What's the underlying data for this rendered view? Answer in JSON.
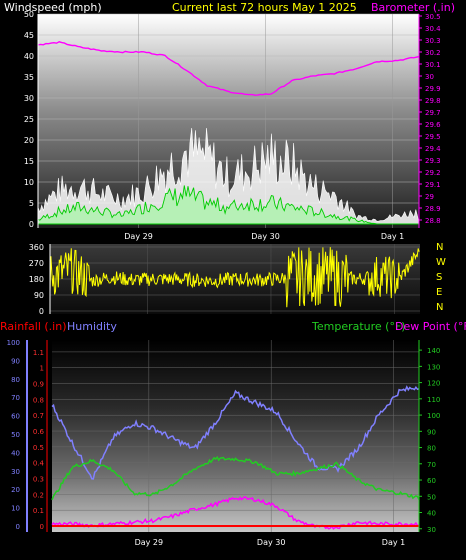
{
  "header": {
    "left": "Windspeed (mph)",
    "center": "Current last 72 hours May 1 2025",
    "right": "Barometer (.in)"
  },
  "colors": {
    "title": "#ffff00",
    "windspeed_title": "#ffffff",
    "barometer": "#ff00ff",
    "wind_avg": "#00cc00",
    "wind_gust": "#ffffff",
    "wind_dir": "#ffff00",
    "humidity": "#8080ff",
    "temperature": "#22cc22",
    "dew_point": "#ff00ff",
    "rainfall": "#ff0000"
  },
  "x_labels": [
    "Day 29",
    "Day 30",
    "Day 1"
  ],
  "chart_data": [
    {
      "type": "area",
      "title": "",
      "ylabel_left": "Windspeed (mph)",
      "ylabel_right": "Barometer (.in)",
      "y_left_ticks": [
        "0",
        "5",
        "10",
        "15",
        "20",
        "25",
        "30",
        "35",
        "40",
        "45",
        "50"
      ],
      "y_left_range": [
        0,
        50
      ],
      "y_right_ticks": [
        "28.8",
        "28.9",
        "29",
        "29.1",
        "29.2",
        "29.3",
        "29.4",
        "29.5",
        "29.6",
        "29.7",
        "29.8",
        "29.9",
        "30",
        "30.1",
        "30.2",
        "30.3",
        "30.4",
        "30.5"
      ],
      "y_right_range": [
        28.8,
        30.5
      ],
      "x": [
        0,
        4,
        8,
        12,
        16,
        20,
        24,
        28,
        32,
        36,
        40,
        44,
        48,
        52,
        56,
        60,
        64,
        68,
        72
      ],
      "series": [
        {
          "name": "Barometer",
          "axis": "right",
          "values": [
            30.26,
            30.28,
            30.24,
            30.21,
            30.2,
            30.2,
            30.17,
            30.05,
            29.92,
            29.87,
            29.84,
            29.85,
            29.96,
            30.0,
            30.02,
            30.06,
            30.12,
            30.13,
            30.16
          ]
        },
        {
          "name": "Wind gust",
          "axis": "left",
          "values": [
            4,
            8,
            9,
            7,
            6,
            8,
            13,
            17,
            16,
            11,
            13,
            16,
            14,
            9,
            7,
            2,
            1,
            2,
            3
          ]
        },
        {
          "name": "Wind average",
          "axis": "left",
          "values": [
            1,
            3,
            4,
            3,
            2,
            4,
            6,
            7,
            5,
            4,
            5,
            5,
            4,
            3,
            2,
            1,
            0,
            0,
            0
          ]
        }
      ]
    },
    {
      "type": "line",
      "title": "",
      "y_ticks": [
        "360",
        "270",
        "180",
        "90",
        "0"
      ],
      "y_range": [
        0,
        360
      ],
      "compass": [
        "N",
        "W",
        "S",
        "E",
        "N"
      ],
      "x": [
        0,
        4,
        8,
        12,
        16,
        20,
        24,
        28,
        32,
        36,
        40,
        44,
        48,
        50,
        56,
        60,
        64,
        68,
        72
      ],
      "series": [
        {
          "name": "Wind direction",
          "values": [
            200,
            230,
            170,
            190,
            175,
            180,
            180,
            175,
            170,
            180,
            175,
            180,
            190,
            200,
            190,
            180,
            200,
            180,
            340
          ]
        }
      ]
    },
    {
      "type": "line",
      "title": "",
      "legend": [
        "Rainfall (.in)",
        "Humidity",
        "Temperature (°F)",
        "Dew Point (°F)"
      ],
      "y_humidity_ticks": [
        "0",
        "10",
        "20",
        "30",
        "40",
        "50",
        "60",
        "70",
        "80",
        "90",
        "100"
      ],
      "y_humidity_range": [
        0,
        100
      ],
      "y_rain_ticks": [
        "0",
        "0.1",
        "0.2",
        "0.3",
        "0.4",
        "0.5",
        "0.6",
        "0.7",
        "0.8",
        "0.9",
        "1",
        "1.1"
      ],
      "y_rain_range": [
        0,
        1.15
      ],
      "y_temp_ticks": [
        "30",
        "40",
        "50",
        "60",
        "70",
        "80",
        "90",
        "100",
        "110",
        "120",
        "130",
        "140"
      ],
      "y_temp_range": [
        28,
        145
      ],
      "x": [
        0,
        4,
        8,
        12,
        16,
        20,
        24,
        28,
        32,
        36,
        40,
        44,
        48,
        52,
        56,
        60,
        64,
        68,
        72
      ],
      "series": [
        {
          "name": "Humidity",
          "axis": "humidity",
          "values": [
            66,
            45,
            26,
            48,
            56,
            53,
            47,
            42,
            56,
            72,
            67,
            62,
            46,
            32,
            31,
            42,
            60,
            73,
            76
          ]
        },
        {
          "name": "Temperature (°F)",
          "axis": "temp",
          "values": [
            48,
            68,
            72,
            66,
            52,
            51,
            58,
            67,
            73,
            73,
            71,
            64,
            64,
            67,
            70,
            60,
            54,
            52,
            49
          ]
        },
        {
          "name": "Dew Point (°F)",
          "axis": "temp",
          "values": [
            33,
            33,
            32,
            33,
            34,
            35,
            38,
            42,
            45,
            49,
            48,
            44,
            35,
            31,
            31,
            34,
            33,
            33,
            33
          ]
        },
        {
          "name": "Rainfall (.in)",
          "axis": "rain",
          "values": [
            0,
            0,
            0,
            0,
            0,
            0,
            0,
            0,
            0,
            0,
            0,
            0,
            0,
            0,
            0,
            0,
            0,
            0,
            0
          ]
        }
      ]
    }
  ]
}
